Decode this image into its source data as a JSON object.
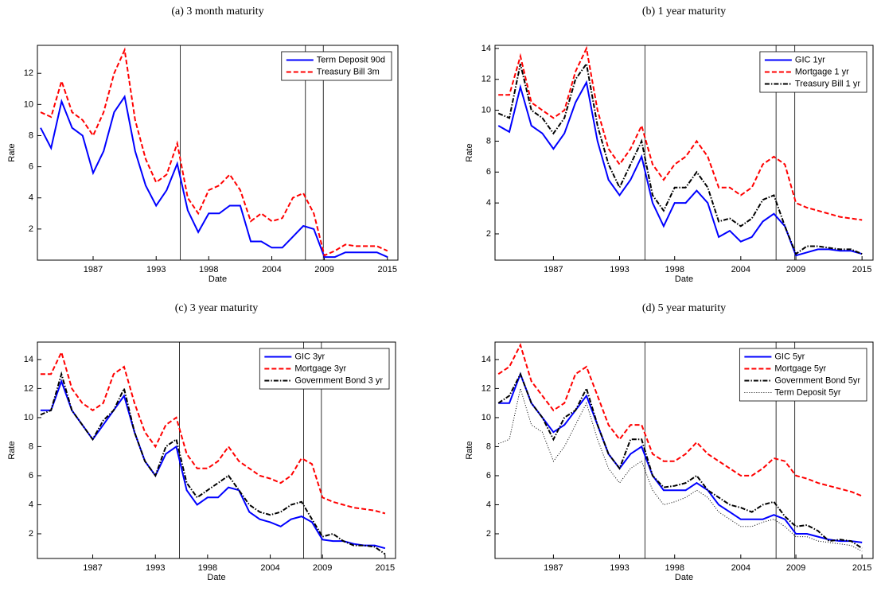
{
  "chart_data": [
    {
      "type": "line",
      "title": "(a) 3 month maturity",
      "x_label": "Date",
      "y_label": "Rate",
      "x": [
        1982,
        1983,
        1984,
        1985,
        1986,
        1987,
        1988,
        1989,
        1990,
        1991,
        1992,
        1993,
        1994,
        1995,
        1996,
        1997,
        1998,
        1999,
        2000,
        2001,
        2002,
        2003,
        2004,
        2005,
        2006,
        2007,
        2008,
        2009,
        2010,
        2011,
        2012,
        2013,
        2014,
        2015
      ],
      "xlim": [
        1981.7,
        2016.0
      ],
      "xticks": [
        1987,
        1993,
        1998,
        2004,
        2009,
        2015
      ],
      "ylim": [
        0,
        13.8
      ],
      "yticks": [
        2,
        4,
        6,
        8,
        10,
        12
      ],
      "vlines": [
        1995.3,
        2007.2,
        2008.9
      ],
      "legend": "upper-right",
      "series": [
        {
          "name": "Term Deposit 90d",
          "color": "#0000ff",
          "style": "solid",
          "values": [
            8.5,
            7.2,
            10.2,
            8.5,
            8.0,
            5.6,
            7.0,
            9.5,
            10.5,
            7.0,
            4.8,
            3.5,
            4.5,
            6.2,
            3.2,
            1.8,
            3.0,
            3.0,
            3.5,
            3.5,
            1.2,
            1.2,
            0.8,
            0.8,
            1.5,
            2.2,
            2.0,
            0.2,
            0.2,
            0.5,
            0.5,
            0.5,
            0.5,
            0.2
          ]
        },
        {
          "name": "Treasury Bill 3m",
          "color": "#ff0000",
          "style": "dashed",
          "values": [
            9.5,
            9.2,
            11.5,
            9.5,
            9.0,
            8.0,
            9.5,
            12.0,
            13.5,
            9.0,
            6.5,
            5.0,
            5.5,
            7.5,
            4.0,
            3.0,
            4.5,
            4.8,
            5.5,
            4.5,
            2.5,
            3.0,
            2.5,
            2.7,
            4.0,
            4.3,
            3.0,
            0.3,
            0.6,
            1.0,
            0.9,
            0.9,
            0.9,
            0.6
          ]
        }
      ]
    },
    {
      "type": "line",
      "title": "(b) 1 year maturity",
      "x_label": "Date",
      "y_label": "Rate",
      "x": [
        1982,
        1983,
        1984,
        1985,
        1986,
        1987,
        1988,
        1989,
        1990,
        1991,
        1992,
        1993,
        1994,
        1995,
        1996,
        1997,
        1998,
        1999,
        2000,
        2001,
        2002,
        2003,
        2004,
        2005,
        2006,
        2007,
        2008,
        2009,
        2010,
        2011,
        2012,
        2013,
        2014,
        2015
      ],
      "xlim": [
        1981.7,
        2016.0
      ],
      "xticks": [
        1987,
        1993,
        1998,
        2004,
        2009,
        2015
      ],
      "ylim": [
        0.3,
        14.2
      ],
      "yticks": [
        2,
        4,
        6,
        8,
        10,
        12,
        14
      ],
      "vlines": [
        1995.3,
        2007.2,
        2008.9
      ],
      "legend": "upper-right",
      "series": [
        {
          "name": "GIC  1yr",
          "color": "#0000ff",
          "style": "solid",
          "values": [
            9.0,
            8.6,
            11.5,
            9.0,
            8.5,
            7.5,
            8.5,
            10.5,
            11.8,
            8.0,
            5.5,
            4.5,
            5.5,
            7.0,
            4.0,
            2.5,
            4.0,
            4.0,
            4.8,
            4.0,
            1.8,
            2.2,
            1.5,
            1.8,
            2.8,
            3.3,
            2.5,
            0.6,
            0.8,
            1.0,
            1.0,
            0.9,
            0.9,
            0.7
          ]
        },
        {
          "name": "Mortgage 1 yr",
          "color": "#ff0000",
          "style": "dashed",
          "values": [
            11.0,
            11.0,
            13.5,
            10.5,
            10.0,
            9.5,
            10.0,
            12.5,
            14.0,
            10.0,
            7.5,
            6.5,
            7.5,
            9.0,
            6.5,
            5.5,
            6.5,
            7.0,
            8.0,
            7.0,
            5.0,
            5.0,
            4.5,
            5.0,
            6.5,
            7.0,
            6.5,
            4.0,
            3.7,
            3.5,
            3.3,
            3.1,
            3.0,
            2.9
          ]
        },
        {
          "name": "Treasury Bill 1 yr",
          "color": "#000000",
          "style": "dashdot",
          "values": [
            9.8,
            9.5,
            13.0,
            10.0,
            9.5,
            8.5,
            9.5,
            12.0,
            13.0,
            9.0,
            6.5,
            5.0,
            6.5,
            8.0,
            4.5,
            3.5,
            5.0,
            5.0,
            6.0,
            5.0,
            2.8,
            3.0,
            2.5,
            3.0,
            4.2,
            4.5,
            2.5,
            0.7,
            1.2,
            1.2,
            1.1,
            1.0,
            1.0,
            0.7
          ]
        }
      ]
    },
    {
      "type": "line",
      "title": "(c) 3 year maturity",
      "x_label": "Date",
      "y_label": "Rate",
      "x": [
        1982,
        1983,
        1984,
        1985,
        1986,
        1987,
        1988,
        1989,
        1990,
        1991,
        1992,
        1993,
        1994,
        1995,
        1996,
        1997,
        1998,
        1999,
        2000,
        2001,
        2002,
        2003,
        2004,
        2005,
        2006,
        2007,
        2008,
        2009,
        2010,
        2011,
        2012,
        2013,
        2014,
        2015
      ],
      "xlim": [
        1981.7,
        2016.0
      ],
      "xticks": [
        1987,
        1993,
        1998,
        2004,
        2009,
        2015
      ],
      "ylim": [
        0.3,
        15.2
      ],
      "yticks": [
        2,
        4,
        6,
        8,
        10,
        12,
        14
      ],
      "vlines": [
        1995.3,
        2007.2,
        2008.9
      ],
      "legend": "upper-right",
      "series": [
        {
          "name": "GIC 3yr",
          "color": "#0000ff",
          "style": "solid",
          "values": [
            10.5,
            10.5,
            12.5,
            10.5,
            9.5,
            8.5,
            9.5,
            10.5,
            11.5,
            9.0,
            7.0,
            6.0,
            7.5,
            8.0,
            5.0,
            4.0,
            4.5,
            4.5,
            5.2,
            5.0,
            3.5,
            3.0,
            2.8,
            2.5,
            3.0,
            3.2,
            2.8,
            1.6,
            1.5,
            1.5,
            1.3,
            1.2,
            1.2,
            1.0
          ]
        },
        {
          "name": "Mortgage 3yr",
          "color": "#ff0000",
          "style": "dashed",
          "values": [
            13.0,
            13.0,
            14.5,
            12.0,
            11.0,
            10.5,
            11.0,
            13.0,
            13.5,
            11.0,
            9.0,
            8.0,
            9.5,
            10.0,
            7.5,
            6.5,
            6.5,
            7.0,
            8.0,
            7.0,
            6.5,
            6.0,
            5.8,
            5.5,
            6.0,
            7.2,
            6.8,
            4.5,
            4.2,
            4.0,
            3.8,
            3.7,
            3.6,
            3.4
          ]
        },
        {
          "name": "Government Bond 3 yr",
          "color": "#000000",
          "style": "dashdot",
          "values": [
            10.2,
            10.5,
            13.0,
            10.5,
            9.5,
            8.5,
            9.8,
            10.5,
            12.0,
            9.0,
            7.0,
            6.0,
            8.0,
            8.5,
            5.5,
            4.5,
            5.0,
            5.5,
            6.0,
            5.0,
            4.0,
            3.5,
            3.3,
            3.5,
            4.0,
            4.2,
            3.0,
            1.8,
            2.0,
            1.5,
            1.2,
            1.2,
            1.1,
            0.6
          ]
        }
      ]
    },
    {
      "type": "line",
      "title": "(d) 5 year maturity",
      "x_label": "Date",
      "y_label": "Rate",
      "x": [
        1982,
        1983,
        1984,
        1985,
        1986,
        1987,
        1988,
        1989,
        1990,
        1991,
        1992,
        1993,
        1994,
        1995,
        1996,
        1997,
        1998,
        1999,
        2000,
        2001,
        2002,
        2003,
        2004,
        2005,
        2006,
        2007,
        2008,
        2009,
        2010,
        2011,
        2012,
        2013,
        2014,
        2015
      ],
      "xlim": [
        1981.7,
        2016.0
      ],
      "xticks": [
        1987,
        1993,
        1998,
        2004,
        2009,
        2015
      ],
      "ylim": [
        0.3,
        15.2
      ],
      "yticks": [
        2,
        4,
        6,
        8,
        10,
        12,
        14
      ],
      "vlines": [
        1995.3,
        2007.2,
        2008.9
      ],
      "legend": "upper-right",
      "series": [
        {
          "name": "GIC 5yr",
          "color": "#0000ff",
          "style": "solid",
          "values": [
            11.0,
            11.0,
            13.0,
            11.0,
            10.0,
            9.0,
            9.5,
            10.5,
            11.5,
            9.5,
            7.5,
            6.5,
            7.5,
            8.0,
            6.0,
            5.0,
            5.0,
            5.0,
            5.5,
            5.0,
            4.0,
            3.5,
            3.0,
            3.0,
            3.0,
            3.3,
            3.0,
            2.0,
            2.0,
            1.8,
            1.6,
            1.5,
            1.5,
            1.4
          ]
        },
        {
          "name": "Mortgage 5yr",
          "color": "#ff0000",
          "style": "dashed",
          "values": [
            13.0,
            13.5,
            15.0,
            12.5,
            11.5,
            10.5,
            11.0,
            13.0,
            13.5,
            11.5,
            9.5,
            8.5,
            9.5,
            9.5,
            7.5,
            7.0,
            7.0,
            7.5,
            8.3,
            7.5,
            7.0,
            6.5,
            6.0,
            6.0,
            6.5,
            7.2,
            7.0,
            6.0,
            5.8,
            5.5,
            5.3,
            5.1,
            4.9,
            4.6
          ]
        },
        {
          "name": "Government Bond 5yr",
          "color": "#000000",
          "style": "dashdot",
          "values": [
            11.0,
            11.5,
            13.0,
            11.0,
            10.0,
            8.5,
            10.0,
            10.5,
            12.0,
            9.5,
            7.5,
            6.5,
            8.5,
            8.5,
            6.0,
            5.2,
            5.3,
            5.5,
            6.0,
            5.0,
            4.5,
            4.0,
            3.8,
            3.5,
            4.0,
            4.2,
            3.2,
            2.5,
            2.6,
            2.2,
            1.5,
            1.6,
            1.5,
            1.0
          ]
        },
        {
          "name": "Term Deposit 5yr",
          "color": "#000000",
          "style": "dotted",
          "values": [
            8.2,
            8.5,
            12.0,
            9.5,
            9.0,
            7.0,
            8.0,
            9.5,
            11.0,
            8.5,
            6.5,
            5.5,
            6.5,
            7.0,
            5.0,
            4.0,
            4.2,
            4.5,
            5.0,
            4.5,
            3.5,
            3.0,
            2.5,
            2.5,
            2.8,
            3.0,
            2.5,
            1.8,
            1.8,
            1.5,
            1.4,
            1.3,
            1.2,
            0.8
          ]
        }
      ]
    }
  ]
}
